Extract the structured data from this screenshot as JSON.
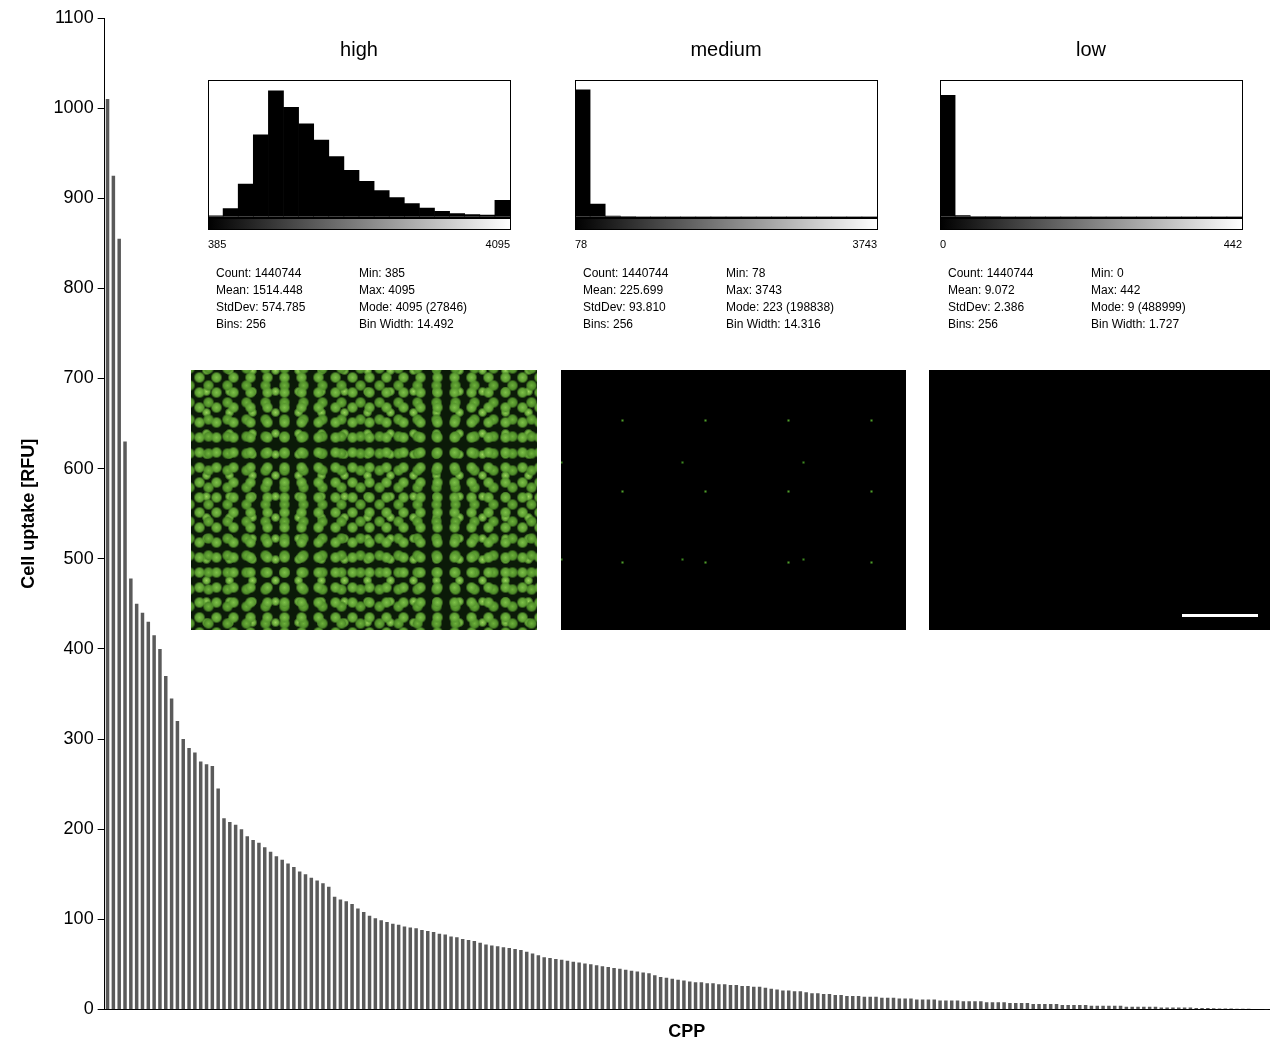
{
  "chart_data": [
    {
      "type": "bar",
      "x_label": "CPP",
      "y_label": "Cell uptake [RFU]",
      "values": [
        1010,
        925,
        855,
        630,
        478,
        450,
        440,
        430,
        415,
        400,
        370,
        345,
        320,
        300,
        290,
        285,
        275,
        272,
        270,
        245,
        212,
        208,
        205,
        200,
        192,
        188,
        185,
        180,
        175,
        170,
        166,
        162,
        158,
        153,
        150,
        146,
        143,
        140,
        136,
        125,
        122,
        120,
        117,
        112,
        108,
        104,
        101,
        99,
        97,
        95,
        94,
        92,
        91,
        90,
        88,
        87,
        86,
        84,
        83,
        81,
        80,
        78,
        77,
        76,
        74,
        72,
        71,
        70,
        69,
        68,
        67,
        66,
        64,
        62,
        60,
        58,
        57,
        56,
        55,
        54,
        53,
        52,
        51,
        50,
        49,
        48,
        47,
        46,
        45,
        44,
        43,
        42,
        41,
        40,
        38,
        36,
        35,
        34,
        33,
        32,
        31,
        30,
        30,
        29,
        29,
        28,
        28,
        27,
        27,
        26,
        26,
        25,
        25,
        24,
        23,
        22,
        21,
        21,
        20,
        20,
        19,
        18,
        18,
        17,
        17,
        16,
        16,
        15,
        15,
        15,
        14,
        14,
        14,
        13,
        13,
        13,
        12,
        12,
        12,
        11,
        11,
        11,
        11,
        10,
        10,
        10,
        10,
        9,
        9,
        9,
        9,
        8,
        8,
        8,
        8,
        7,
        7,
        7,
        7,
        6,
        6,
        6,
        6,
        6,
        5,
        5,
        5,
        5,
        5,
        4,
        4,
        4,
        4,
        4,
        4,
        3,
        3,
        3,
        3,
        3,
        3,
        2,
        2,
        2,
        2,
        2,
        2,
        1.5,
        1.5,
        1.5,
        1.2,
        1,
        1,
        1,
        0.8,
        0.7,
        0.6,
        0.5,
        0.4,
        0.3
      ],
      "color": "#5a5a5a",
      "ylim": [
        0,
        1100
      ],
      "yticks": [
        0,
        100,
        200,
        300,
        400,
        500,
        600,
        700,
        800,
        900,
        1000,
        1100
      ],
      "grid": false,
      "tick_labels": "y"
    },
    {
      "type": "histogram",
      "title": "high",
      "bins": [
        385,
        570.5,
        756,
        941.5,
        1127,
        1312.5,
        1498,
        1683.5,
        1869,
        2054.5,
        2240,
        2425.5,
        2611,
        2796.5,
        2982,
        3167.5,
        3353,
        3538.5,
        3724,
        3909.5,
        4095
      ],
      "values": [
        2000,
        15000,
        60000,
        150000,
        230000,
        200000,
        170000,
        140000,
        110000,
        85000,
        65000,
        48000,
        35000,
        24000,
        16000,
        10000,
        6000,
        4000,
        3000,
        30000
      ],
      "color": "#000000",
      "xlim": [
        385,
        4095
      ],
      "xticks": [
        385,
        4095
      ],
      "tick_labels": "x",
      "stats": [
        "Count: 1440744",
        "Mean: 1514.448",
        "StdDev: 574.785",
        "Bins: 256",
        "Min: 385",
        "Max: 4095",
        "Mode: 4095 (27846)",
        "Bin Width: 14.492"
      ]
    },
    {
      "type": "histogram",
      "title": "medium",
      "bins": [
        78,
        261.25,
        444.5,
        627.75,
        811,
        994.25,
        1177.5,
        1360.75,
        1544,
        1727.25,
        1910.5,
        2093.75,
        2277,
        2460.25,
        2643.5,
        2826.75,
        3010,
        3193.25,
        3376.5,
        3559.75,
        3743
      ],
      "values": [
        1300000,
        130000,
        8000,
        2000,
        600,
        300,
        150,
        100,
        80,
        60,
        40,
        30,
        20,
        15,
        10,
        8,
        6,
        5,
        4,
        16
      ],
      "color": "#000000",
      "xlim": [
        78,
        3743
      ],
      "xticks": [
        78,
        3743
      ],
      "tick_labels": "x",
      "stats": [
        "Count: 1440744",
        "Mean: 225.699",
        "StdDev: 93.810",
        "Bins: 256",
        "Min: 78",
        "Max: 3743",
        "Mode: 223 (198838)",
        "Bin Width: 14.316"
      ]
    },
    {
      "type": "histogram",
      "title": "low",
      "bins": [
        0,
        22.1,
        44.2,
        66.3,
        88.4,
        110.5,
        132.6,
        154.7,
        176.8,
        198.9,
        221,
        243.1,
        265.2,
        287.3,
        309.4,
        331.5,
        353.6,
        375.7,
        397.8,
        419.9,
        442
      ],
      "values": [
        1420000,
        15000,
        3000,
        1200,
        600,
        300,
        200,
        100,
        80,
        60,
        40,
        30,
        20,
        15,
        10,
        8,
        5,
        4,
        3,
        2
      ],
      "color": "#000000",
      "xlim": [
        0,
        442
      ],
      "xticks": [
        0,
        442
      ],
      "tick_labels": "x",
      "stats": [
        "Count: 1440744",
        "Mean: 9.072",
        "StdDev: 2.386",
        "Bins: 256",
        "Min: 0",
        "Max: 442",
        "Mode: 9 (488999)",
        "Bin Width: 1.727"
      ]
    }
  ]
}
